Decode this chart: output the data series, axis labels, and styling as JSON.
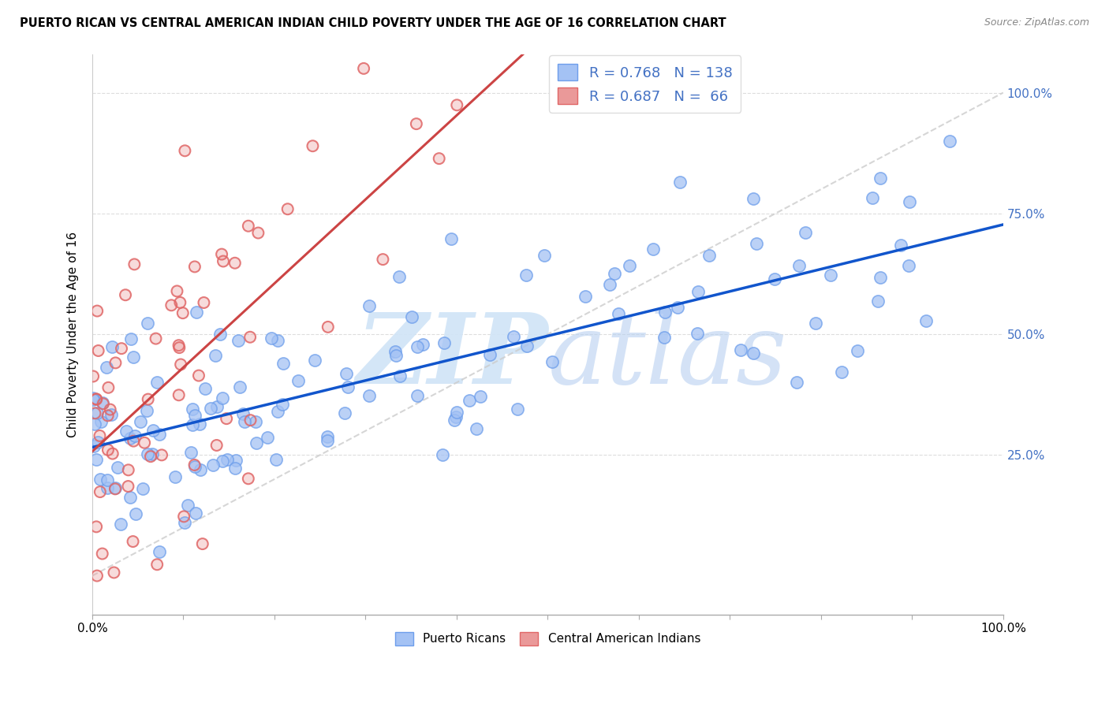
{
  "title": "PUERTO RICAN VS CENTRAL AMERICAN INDIAN CHILD POVERTY UNDER THE AGE OF 16 CORRELATION CHART",
  "source": "Source: ZipAtlas.com",
  "ylabel": "Child Poverty Under the Age of 16",
  "blue_R": 0.768,
  "blue_N": 138,
  "pink_R": 0.687,
  "pink_N": 66,
  "blue_color": "#a4c2f4",
  "blue_edge_color": "#6d9eeb",
  "pink_color": "#ea9999",
  "pink_edge_color": "#e06666",
  "blue_line_color": "#1155cc",
  "pink_line_color": "#cc4444",
  "ref_line_color": "#cccccc",
  "watermark_color": "#d0e4f7",
  "background_color": "#ffffff",
  "grid_color": "#dddddd",
  "ytick_color": "#4472c4",
  "blue_scatter_seed": 42,
  "pink_scatter_seed": 123
}
